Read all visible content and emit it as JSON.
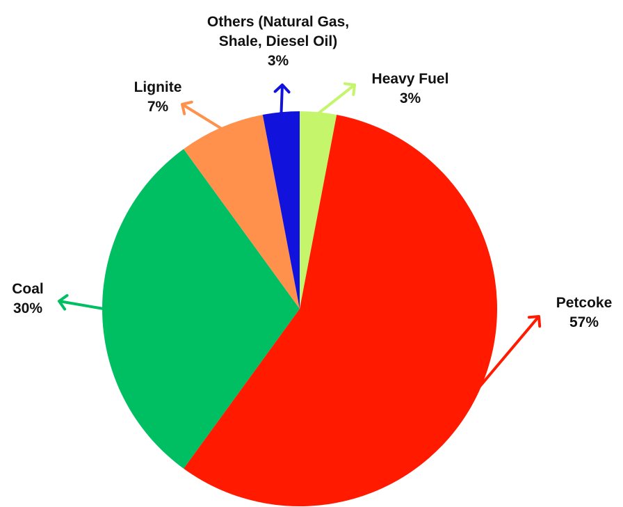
{
  "chart_data": {
    "type": "pie",
    "categories": [
      "Heavy Fuel",
      "Petcoke",
      "Coal",
      "Lignite",
      "Others (Natural Gas, Shale, Diesel Oil)"
    ],
    "values": [
      3,
      57,
      30,
      7,
      3
    ],
    "value_labels": [
      "3%",
      "57%",
      "30%",
      "7%",
      "3%"
    ],
    "colors": [
      "#c4f56a",
      "#ff1a00",
      "#00bf63",
      "#ff914d",
      "#1212dd"
    ]
  }
}
